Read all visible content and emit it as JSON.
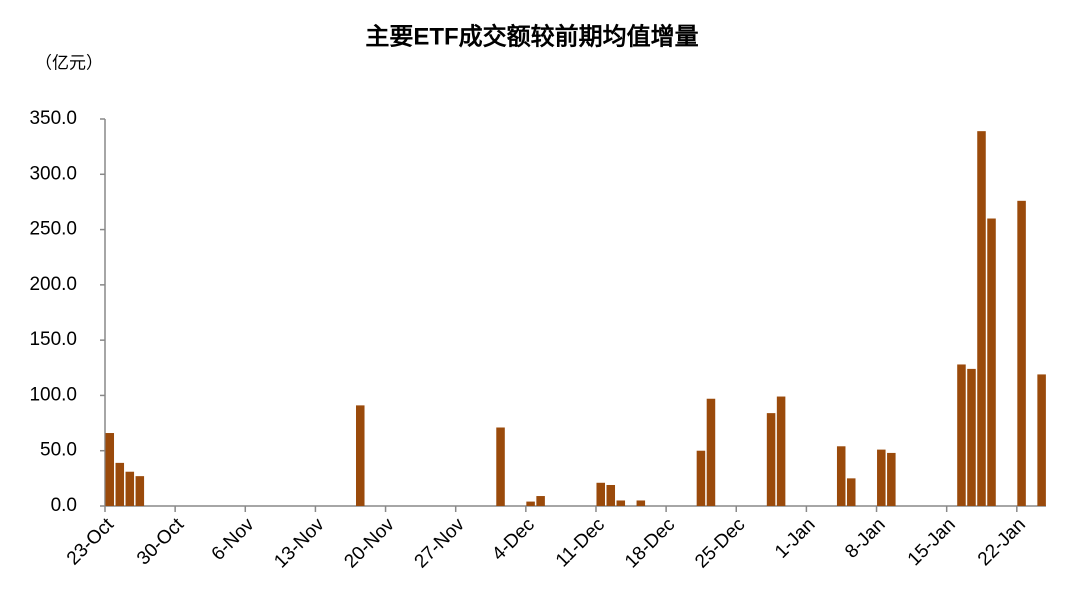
{
  "chart_data": {
    "type": "bar",
    "title": "主要ETF成交额较前期均值增量",
    "unit_label": "（亿元）",
    "categories": [
      "23-Oct",
      null,
      null,
      null,
      null,
      null,
      null,
      "30-Oct",
      null,
      null,
      null,
      null,
      null,
      null,
      "6-Nov",
      null,
      null,
      null,
      null,
      null,
      null,
      "13-Nov",
      null,
      null,
      null,
      null,
      null,
      null,
      "20-Nov",
      null,
      null,
      null,
      null,
      null,
      null,
      "27-Nov",
      null,
      null,
      null,
      null,
      null,
      null,
      "4-Dec",
      null,
      null,
      null,
      null,
      null,
      null,
      "11-Dec",
      null,
      null,
      null,
      null,
      null,
      null,
      "18-Dec",
      null,
      null,
      null,
      null,
      null,
      null,
      "25-Dec",
      null,
      null,
      null,
      null,
      null,
      null,
      "1-Jan",
      null,
      null,
      null,
      null,
      null,
      null,
      "8-Jan",
      null,
      null,
      null,
      null,
      null,
      null,
      "15-Jan",
      null,
      null,
      null,
      null,
      null,
      null,
      "22-Jan",
      null,
      null
    ],
    "values": [
      66,
      39,
      31,
      27,
      null,
      null,
      null,
      null,
      null,
      null,
      null,
      null,
      null,
      null,
      null,
      null,
      null,
      null,
      null,
      null,
      null,
      null,
      null,
      null,
      null,
      91,
      null,
      null,
      null,
      null,
      null,
      null,
      null,
      null,
      null,
      null,
      null,
      null,
      null,
      71,
      null,
      null,
      4,
      9,
      null,
      null,
      null,
      null,
      null,
      21,
      19,
      5,
      null,
      5,
      null,
      null,
      null,
      null,
      null,
      50,
      97,
      null,
      null,
      null,
      null,
      null,
      84,
      99,
      null,
      null,
      null,
      null,
      null,
      54,
      25,
      null,
      null,
      51,
      48,
      null,
      null,
      null,
      null,
      null,
      null,
      128,
      124,
      339,
      260,
      null,
      null,
      276,
      null,
      119
    ],
    "color": "#9a4a0b",
    "ylim": [
      0,
      350
    ],
    "yticks": [
      {
        "value": 0,
        "label": "0.0"
      },
      {
        "value": 50,
        "label": "50.0"
      },
      {
        "value": 100,
        "label": "100.0"
      },
      {
        "value": 150,
        "label": "150.0"
      },
      {
        "value": 200,
        "label": "200.0"
      },
      {
        "value": 250,
        "label": "250.0"
      },
      {
        "value": 300,
        "label": "300.0"
      },
      {
        "value": 350,
        "label": "350.0"
      }
    ],
    "grid": false
  }
}
